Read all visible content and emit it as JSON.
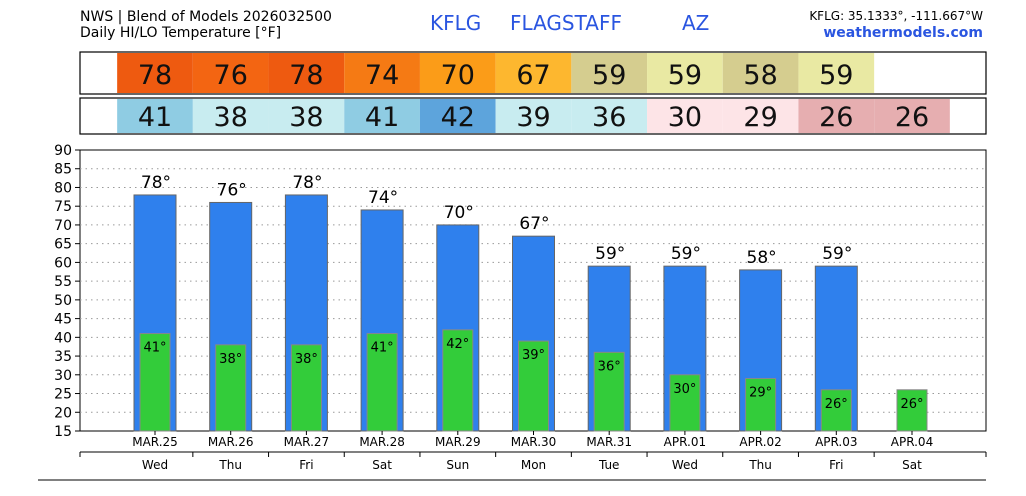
{
  "header": {
    "source_line": "NWS | Blend of Models 2026032500",
    "title_line": "Daily HI/LO Temperature [°F]",
    "station_id": "KFLG",
    "station_name": "FLAGSTAFF",
    "state": "AZ",
    "coords": "KFLG: 35.1333°, -111.667°W",
    "site": "weathermodels.com"
  },
  "strip_colors": {
    "highs": [
      "#ee5a10",
      "#f36512",
      "#ee5a10",
      "#f57a14",
      "#fb9c18",
      "#fdb72f",
      "#d5cd8f",
      "#e9e9a3",
      "#d5cd8f",
      "#e9e9a3"
    ],
    "lows": [
      "#8fcce3",
      "#c8ecf0",
      "#c8ecf0",
      "#8fcce3",
      "#5da4dc",
      "#c8ecf0",
      "#c8ecf0",
      "#fde4e7",
      "#fde4e7",
      "#e6aeb0",
      "#e6aeb0"
    ]
  },
  "chart_data": {
    "type": "bar",
    "title": "Daily HI/LO Temperature [°F]",
    "categories": [
      "MAR.25",
      "MAR.26",
      "MAR.27",
      "MAR.28",
      "MAR.29",
      "MAR.30",
      "MAR.31",
      "APR.01",
      "APR.02",
      "APR.03",
      "APR.04"
    ],
    "weekdays": [
      "Wed",
      "Thu",
      "Fri",
      "Sat",
      "Sun",
      "Mon",
      "Tue",
      "Wed",
      "Thu",
      "Fri",
      "Sat"
    ],
    "ylim": [
      15,
      90
    ],
    "yticks": [
      15,
      20,
      25,
      30,
      35,
      40,
      45,
      50,
      55,
      60,
      65,
      70,
      75,
      80,
      85,
      90
    ],
    "grid": true,
    "series": [
      {
        "name": "HI",
        "color": "#2f80ed",
        "values": [
          78,
          76,
          78,
          74,
          70,
          67,
          59,
          59,
          58,
          59,
          null
        ]
      },
      {
        "name": "LO",
        "color": "#33cc3a",
        "values": [
          41,
          38,
          38,
          41,
          42,
          39,
          36,
          30,
          29,
          26,
          26
        ]
      }
    ],
    "high_labels": [
      "78°",
      "76°",
      "78°",
      "74°",
      "70°",
      "67°",
      "59°",
      "59°",
      "58°",
      "59°",
      ""
    ],
    "low_labels": [
      "41°",
      "38°",
      "38°",
      "41°",
      "42°",
      "39°",
      "36°",
      "30°",
      "29°",
      "26°",
      "26°"
    ],
    "high_strip": [
      "78",
      "76",
      "78",
      "74",
      "70",
      "67",
      "59",
      "59",
      "58",
      "59",
      ""
    ],
    "low_strip": [
      "41",
      "38",
      "38",
      "41",
      "42",
      "39",
      "36",
      "30",
      "29",
      "26",
      "26"
    ]
  }
}
